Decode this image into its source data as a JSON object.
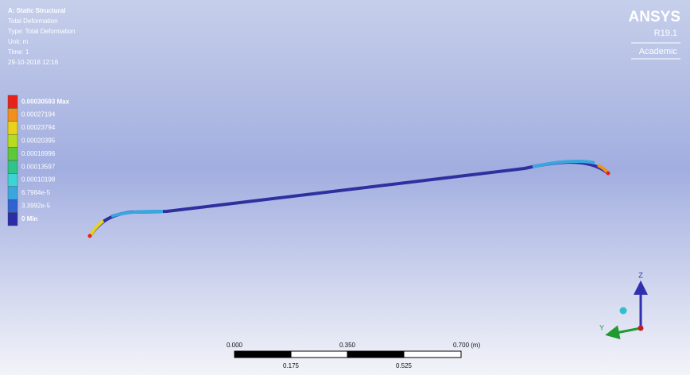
{
  "header": {
    "lines": [
      "A: Static Structural",
      "Total Deformation",
      "Type: Total Deformation",
      "Unit: m",
      "Time: 1",
      "29-10-2018 12:16"
    ]
  },
  "legend": {
    "items": [
      {
        "label": "0.00030593 Max",
        "color": "#e8211b"
      },
      {
        "label": "0.00027194",
        "color": "#f2901c"
      },
      {
        "label": "0.00023794",
        "color": "#e8d21a"
      },
      {
        "label": "0.00020395",
        "color": "#b6dc22"
      },
      {
        "label": "0.00016996",
        "color": "#5cc83a"
      },
      {
        "label": "0.00013597",
        "color": "#2fc489"
      },
      {
        "label": "0.00010198",
        "color": "#3ed4d6"
      },
      {
        "label": "6.7984e-5",
        "color": "#3aa6e0"
      },
      {
        "label": "3.3992e-5",
        "color": "#2f62d4"
      },
      {
        "label": "0 Min",
        "color": "#2b2ca8"
      }
    ]
  },
  "logo": {
    "brand": "ANSYS",
    "release": "R19.1",
    "edition": "Academic"
  },
  "scale_bar": {
    "top_labels": [
      "0.000",
      "0.350",
      "0.700 (m)"
    ],
    "bottom_labels": [
      "0.175",
      "0.525"
    ]
  },
  "triad": {
    "z": "Z",
    "y": "Y"
  }
}
